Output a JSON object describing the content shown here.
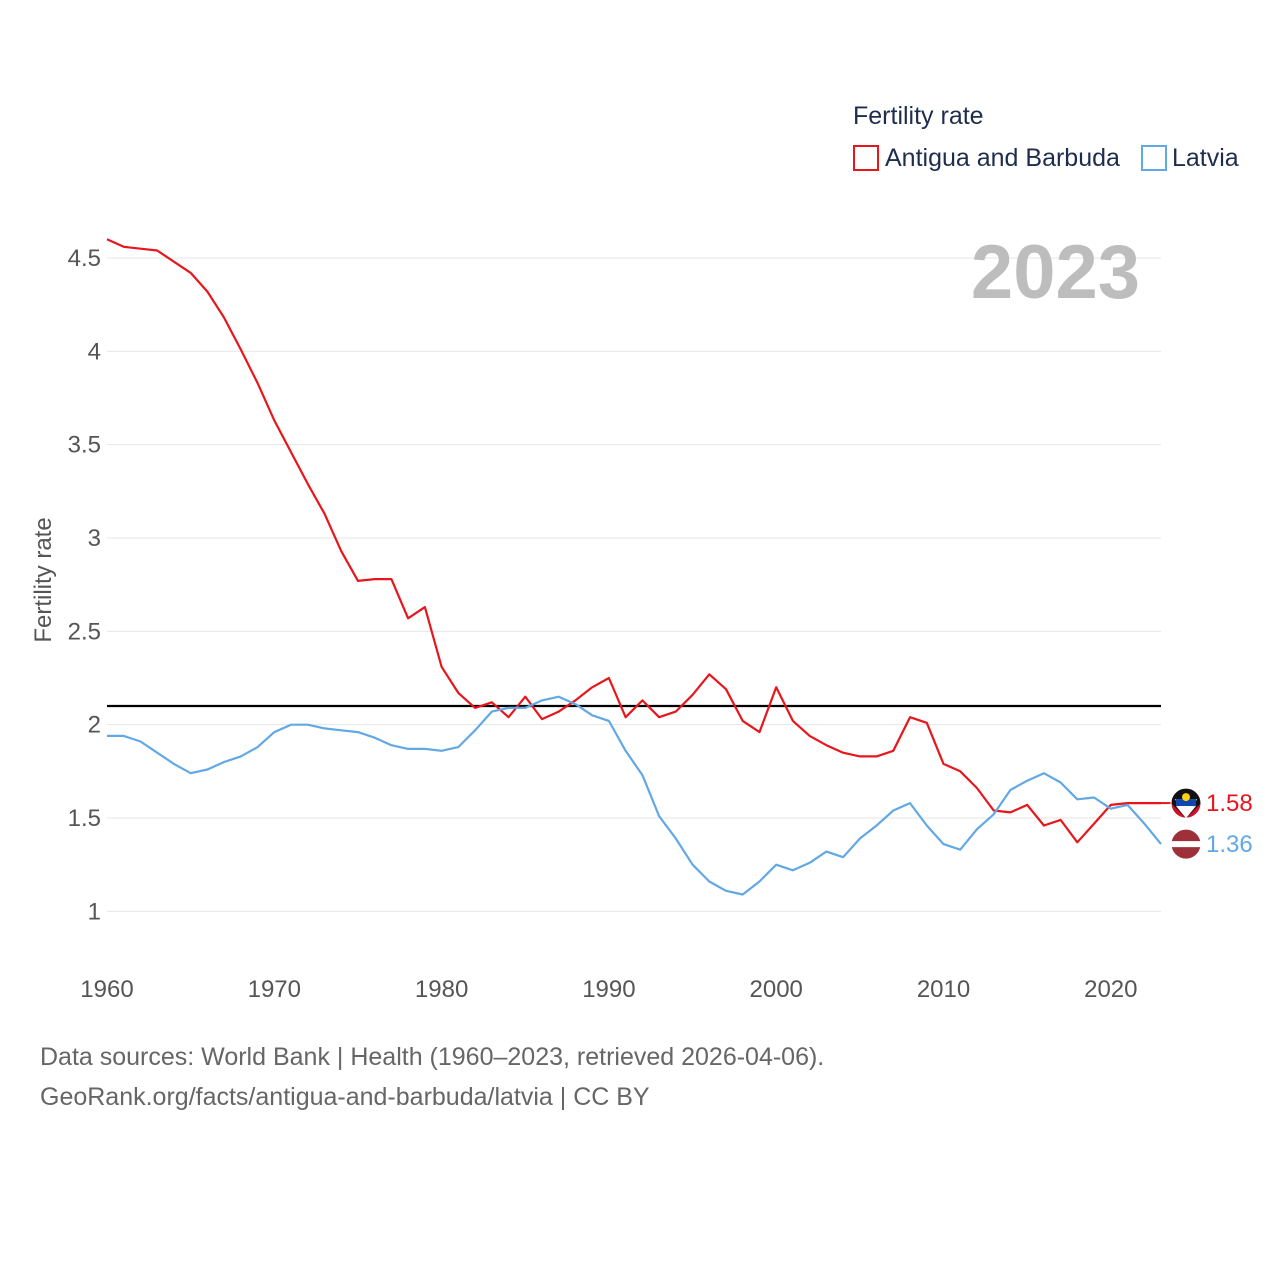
{
  "chart_data": {
    "type": "line",
    "ylabel": "Fertility rate",
    "legend_title": "Fertility rate",
    "legend_position": "top-right",
    "year_label": "2023",
    "xlim": [
      1960,
      2023
    ],
    "ylim": [
      0.75,
      4.65
    ],
    "x_ticks": [
      1960,
      1970,
      1980,
      1990,
      2000,
      2010,
      2020
    ],
    "y_ticks": [
      {
        "value": 1,
        "label": "1"
      },
      {
        "value": 1.5,
        "label": "1.5"
      },
      {
        "value": 2,
        "label": "2"
      },
      {
        "value": 2.5,
        "label": "2.5"
      },
      {
        "value": 3,
        "label": "3"
      },
      {
        "value": 3.5,
        "label": "3.5"
      },
      {
        "value": 4,
        "label": "4"
      },
      {
        "value": 4.5,
        "label": "4.5"
      }
    ],
    "reference_line": {
      "value": 2.1,
      "color": "#000000"
    },
    "x": [
      1960,
      1961,
      1962,
      1963,
      1964,
      1965,
      1966,
      1967,
      1968,
      1969,
      1970,
      1971,
      1972,
      1973,
      1974,
      1975,
      1976,
      1977,
      1978,
      1979,
      1980,
      1981,
      1982,
      1983,
      1984,
      1985,
      1986,
      1987,
      1988,
      1989,
      1990,
      1991,
      1992,
      1993,
      1994,
      1995,
      1996,
      1997,
      1998,
      1999,
      2000,
      2001,
      2002,
      2003,
      2004,
      2005,
      2006,
      2007,
      2008,
      2009,
      2010,
      2011,
      2012,
      2013,
      2014,
      2015,
      2016,
      2017,
      2018,
      2019,
      2020,
      2021,
      2022,
      2023
    ],
    "series": [
      {
        "name": "Antigua and Barbuda",
        "color": "#e8161c",
        "end_label": "1.58",
        "values": [
          4.6,
          4.56,
          4.55,
          4.54,
          4.48,
          4.42,
          4.32,
          4.18,
          4.01,
          3.83,
          3.63,
          3.46,
          3.29,
          3.13,
          2.93,
          2.77,
          2.78,
          2.78,
          2.57,
          2.63,
          2.31,
          2.17,
          2.09,
          2.12,
          2.04,
          2.15,
          2.03,
          2.07,
          2.13,
          2.2,
          2.25,
          2.04,
          2.13,
          2.04,
          2.07,
          2.16,
          2.27,
          2.19,
          2.02,
          1.96,
          2.2,
          2.02,
          1.94,
          1.89,
          1.85,
          1.83,
          1.83,
          1.86,
          2.04,
          2.01,
          1.79,
          1.75,
          1.66,
          1.54,
          1.53,
          1.57,
          1.46,
          1.49,
          1.37,
          1.47,
          1.57,
          1.58,
          1.58,
          1.58
        ]
      },
      {
        "name": "Latvia",
        "color": "#62a8e5",
        "end_label": "1.36",
        "values": [
          1.94,
          1.94,
          1.91,
          1.85,
          1.79,
          1.74,
          1.76,
          1.8,
          1.83,
          1.88,
          1.96,
          2.0,
          2.0,
          1.98,
          1.97,
          1.96,
          1.93,
          1.89,
          1.87,
          1.87,
          1.86,
          1.88,
          1.97,
          2.07,
          2.09,
          2.09,
          2.13,
          2.15,
          2.11,
          2.05,
          2.02,
          1.86,
          1.73,
          1.51,
          1.39,
          1.25,
          1.16,
          1.11,
          1.09,
          1.16,
          1.25,
          1.22,
          1.26,
          1.32,
          1.29,
          1.39,
          1.46,
          1.54,
          1.58,
          1.46,
          1.36,
          1.33,
          1.44,
          1.52,
          1.65,
          1.7,
          1.74,
          1.69,
          1.6,
          1.61,
          1.55,
          1.57,
          1.47,
          1.36
        ]
      }
    ]
  },
  "footer": {
    "source": "Data sources: World Bank | Health (1960–2023, retrieved 2026-04-06).",
    "url": "GeoRank.org/facts/antigua-and-barbuda/latvia | CC BY"
  }
}
